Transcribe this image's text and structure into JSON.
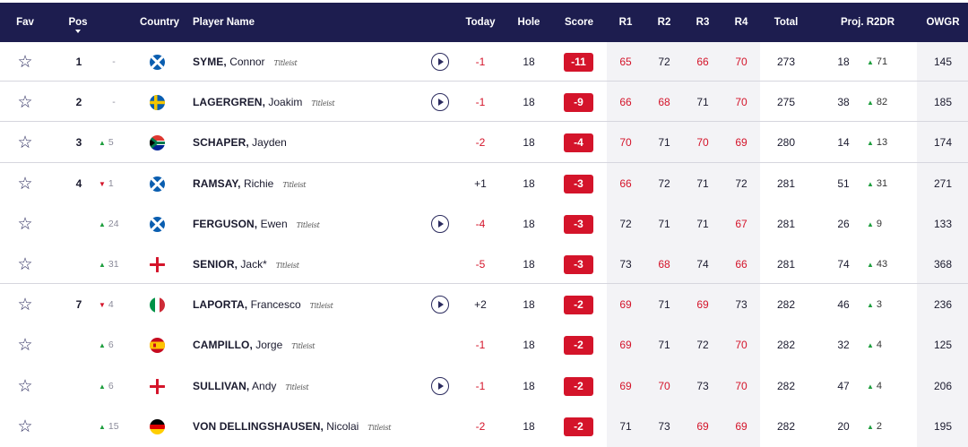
{
  "header": {
    "fav": "Fav",
    "pos": "Pos",
    "country": "Country",
    "player_name": "Player Name",
    "today": "Today",
    "hole": "Hole",
    "score": "Score",
    "r1": "R1",
    "r2": "R2",
    "r3": "R3",
    "r4": "R4",
    "total": "Total",
    "proj_r2dr": "Proj. R2DR",
    "owgr": "OWGR"
  },
  "colors": {
    "header_bg": "#1d1d4f",
    "score_red": "#d4142a",
    "up_green": "#1e9e3e",
    "shade": "#f3f3f6"
  },
  "rows": [
    {
      "pos": "1",
      "move_dir": "flat",
      "move": "-",
      "country": "scotland",
      "last": "SYME,",
      "first": "Connor",
      "sponsor": "Titleist",
      "play": true,
      "today": "-1",
      "hole": "18",
      "score": "-11",
      "r1": "65",
      "r2": "72",
      "r3": "66",
      "r4": "70",
      "red": [
        true,
        false,
        true,
        true
      ],
      "total": "273",
      "proj": "18",
      "r2dr": "71",
      "owgr": "145"
    },
    {
      "pos": "2",
      "move_dir": "flat",
      "move": "-",
      "country": "sweden",
      "last": "LAGERGREN,",
      "first": "Joakim",
      "sponsor": "Titleist",
      "play": true,
      "today": "-1",
      "hole": "18",
      "score": "-9",
      "r1": "66",
      "r2": "68",
      "r3": "71",
      "r4": "70",
      "red": [
        true,
        true,
        false,
        true
      ],
      "total": "275",
      "proj": "38",
      "r2dr": "82",
      "owgr": "185"
    },
    {
      "pos": "3",
      "move_dir": "up",
      "move": "5",
      "country": "south-africa",
      "last": "SCHAPER,",
      "first": "Jayden",
      "sponsor": "",
      "play": false,
      "today": "-2",
      "hole": "18",
      "score": "-4",
      "r1": "70",
      "r2": "71",
      "r3": "70",
      "r4": "69",
      "red": [
        true,
        false,
        true,
        true
      ],
      "total": "280",
      "proj": "14",
      "r2dr": "13",
      "owgr": "174"
    },
    {
      "pos": "4",
      "move_dir": "down",
      "move": "1",
      "country": "scotland",
      "last": "RAMSAY,",
      "first": "Richie",
      "sponsor": "Titleist",
      "play": false,
      "today": "+1",
      "hole": "18",
      "score": "-3",
      "r1": "66",
      "r2": "72",
      "r3": "71",
      "r4": "72",
      "red": [
        true,
        false,
        false,
        false
      ],
      "total": "281",
      "proj": "51",
      "r2dr": "31",
      "owgr": "271"
    },
    {
      "pos": "",
      "move_dir": "up",
      "move": "24",
      "country": "scotland",
      "last": "FERGUSON,",
      "first": "Ewen",
      "sponsor": "Titleist",
      "play": true,
      "today": "-4",
      "hole": "18",
      "score": "-3",
      "r1": "72",
      "r2": "71",
      "r3": "71",
      "r4": "67",
      "red": [
        false,
        false,
        false,
        true
      ],
      "total": "281",
      "proj": "26",
      "r2dr": "9",
      "owgr": "133"
    },
    {
      "pos": "",
      "move_dir": "up",
      "move": "31",
      "country": "england",
      "last": "SENIOR,",
      "first": "Jack*",
      "sponsor": "Titleist",
      "play": false,
      "today": "-5",
      "hole": "18",
      "score": "-3",
      "r1": "73",
      "r2": "68",
      "r3": "74",
      "r4": "66",
      "red": [
        false,
        true,
        false,
        true
      ],
      "total": "281",
      "proj": "74",
      "r2dr": "43",
      "owgr": "368"
    },
    {
      "pos": "7",
      "move_dir": "down",
      "move": "4",
      "country": "italy",
      "last": "LAPORTA,",
      "first": "Francesco",
      "sponsor": "Titleist",
      "play": true,
      "today": "+2",
      "hole": "18",
      "score": "-2",
      "r1": "69",
      "r2": "71",
      "r3": "69",
      "r4": "73",
      "red": [
        true,
        false,
        true,
        false
      ],
      "total": "282",
      "proj": "46",
      "r2dr": "3",
      "owgr": "236"
    },
    {
      "pos": "",
      "move_dir": "up",
      "move": "6",
      "country": "spain",
      "last": "CAMPILLO,",
      "first": "Jorge",
      "sponsor": "Titleist",
      "play": false,
      "today": "-1",
      "hole": "18",
      "score": "-2",
      "r1": "69",
      "r2": "71",
      "r3": "72",
      "r4": "70",
      "red": [
        true,
        false,
        false,
        true
      ],
      "total": "282",
      "proj": "32",
      "r2dr": "4",
      "owgr": "125"
    },
    {
      "pos": "",
      "move_dir": "up",
      "move": "6",
      "country": "england",
      "last": "SULLIVAN,",
      "first": "Andy",
      "sponsor": "Titleist",
      "play": true,
      "today": "-1",
      "hole": "18",
      "score": "-2",
      "r1": "69",
      "r2": "70",
      "r3": "73",
      "r4": "70",
      "red": [
        true,
        true,
        false,
        true
      ],
      "total": "282",
      "proj": "47",
      "r2dr": "4",
      "owgr": "206"
    },
    {
      "pos": "",
      "move_dir": "up",
      "move": "15",
      "country": "germany",
      "last": "VON DELLINGSHAUSEN,",
      "first": "Nicolai",
      "sponsor": "Titleist",
      "play": false,
      "today": "-2",
      "hole": "18",
      "score": "-2",
      "r1": "71",
      "r2": "73",
      "r3": "69",
      "r4": "69",
      "red": [
        false,
        false,
        true,
        true
      ],
      "total": "282",
      "proj": "20",
      "r2dr": "2",
      "owgr": "195"
    }
  ]
}
